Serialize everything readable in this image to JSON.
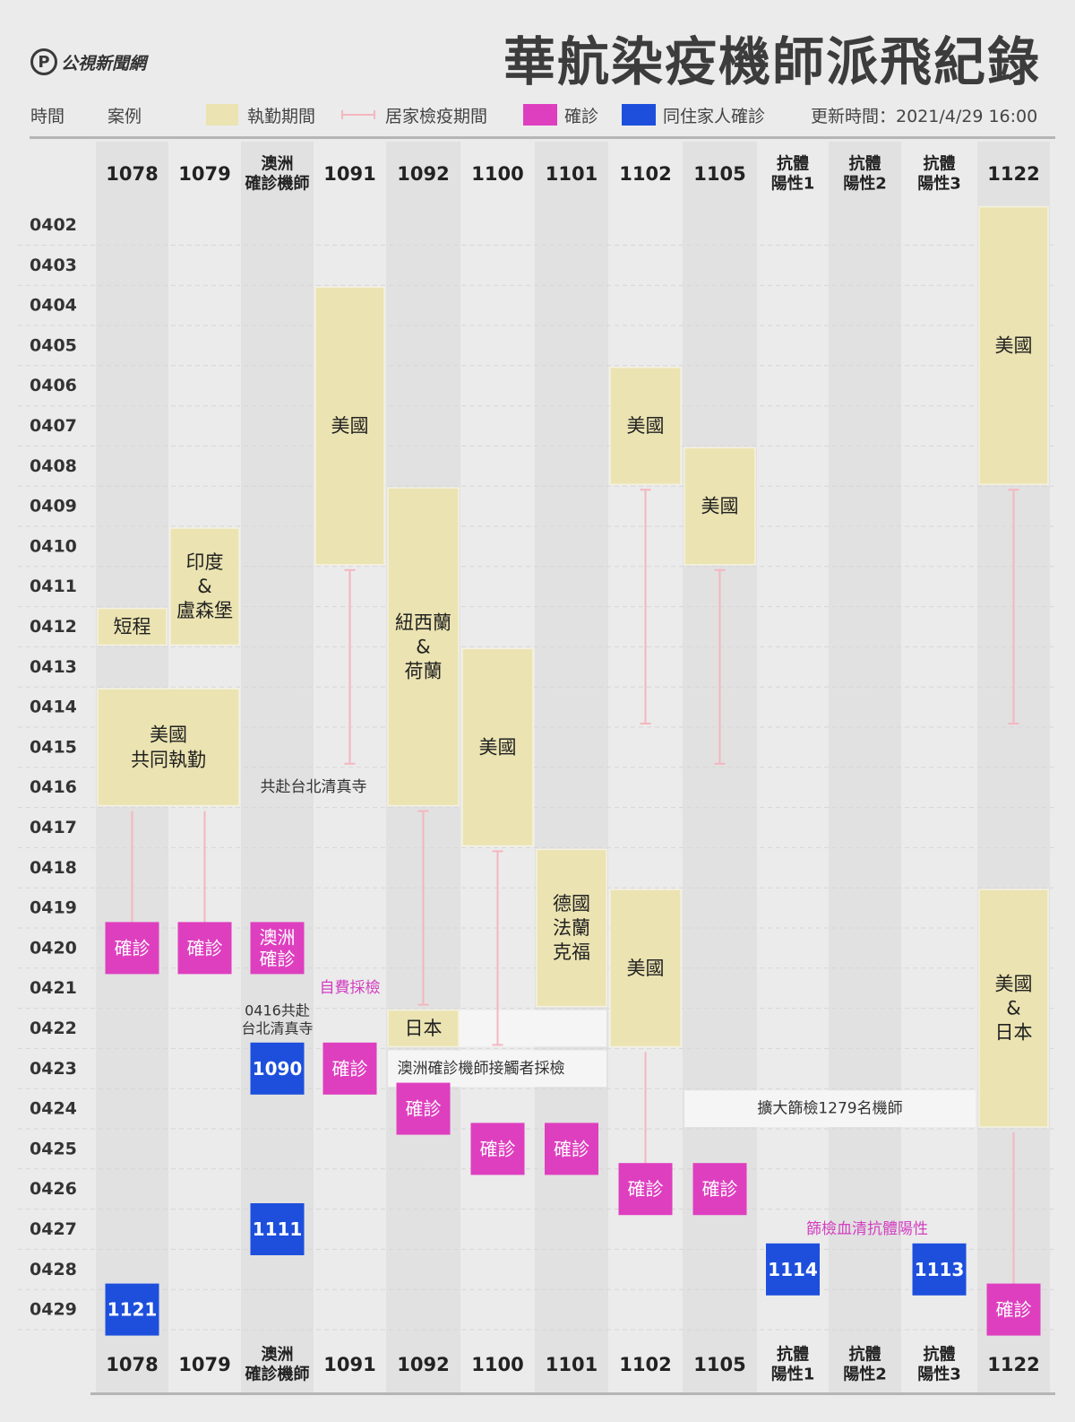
{
  "brand": {
    "logo_text": "公視新聞網",
    "logo_mark": "P"
  },
  "title": "華航染疫機師派飛紀錄",
  "legend": {
    "time_label": "時間",
    "case_label": "案例",
    "duty_label": "執勤期間",
    "quarantine_label": "居家檢疫期間",
    "confirmed_label": "確診",
    "family_label": "同住家人確診",
    "update_label": "更新時間：2021/4/29 16:00"
  },
  "colors": {
    "duty": "#ebe3b1",
    "quarantine": "#f4b6bf",
    "confirmed": "#de3fbf",
    "family": "#1d4fdc",
    "band": "#e1e1e1",
    "note_bg": "#f5f5f5",
    "pink_text": "#d33fc0"
  },
  "chart_data": {
    "type": "table",
    "columns": [
      {
        "id": "1078",
        "label": [
          "1078"
        ]
      },
      {
        "id": "1079",
        "label": [
          "1079"
        ]
      },
      {
        "id": "aus",
        "label": [
          "澳洲",
          "確診機師"
        ]
      },
      {
        "id": "1091",
        "label": [
          "1091"
        ]
      },
      {
        "id": "1092",
        "label": [
          "1092"
        ]
      },
      {
        "id": "1100",
        "label": [
          "1100"
        ]
      },
      {
        "id": "1101",
        "label": [
          "1101"
        ]
      },
      {
        "id": "1102",
        "label": [
          "1102"
        ]
      },
      {
        "id": "1105",
        "label": [
          "1105"
        ]
      },
      {
        "id": "ab1",
        "label": [
          "抗體",
          "陽性1"
        ]
      },
      {
        "id": "ab2",
        "label": [
          "抗體",
          "陽性2"
        ]
      },
      {
        "id": "ab3",
        "label": [
          "抗體",
          "陽性3"
        ]
      },
      {
        "id": "1122",
        "label": [
          "1122"
        ]
      }
    ],
    "dates": [
      "0402",
      "0403",
      "0404",
      "0405",
      "0406",
      "0407",
      "0408",
      "0409",
      "0410",
      "0411",
      "0412",
      "0413",
      "0414",
      "0415",
      "0416",
      "0417",
      "0418",
      "0419",
      "0420",
      "0421",
      "0422",
      "0423",
      "0424",
      "0425",
      "0426",
      "0427",
      "0428",
      "0429"
    ],
    "duty": [
      {
        "col": 0,
        "start": "0412",
        "end": "0412",
        "text": [
          "短程"
        ]
      },
      {
        "col": 1,
        "start": "0410",
        "end": "0412",
        "text": [
          "印度",
          "&",
          "盧森堡"
        ]
      },
      {
        "col": 0,
        "col_end": 1,
        "start": "0414",
        "end": "0416",
        "text": [
          "美國",
          "共同執勤"
        ]
      },
      {
        "col": 3,
        "start": "0404",
        "end": "0410",
        "text": [
          "美國"
        ]
      },
      {
        "col": 4,
        "start": "0409",
        "end": "0416",
        "text": [
          "紐西蘭",
          "&",
          "荷蘭"
        ]
      },
      {
        "col": 4,
        "start": "0422",
        "end": "0422",
        "text": [
          "日本"
        ]
      },
      {
        "col": 5,
        "start": "0413",
        "end": "0417",
        "text": [
          "美國"
        ]
      },
      {
        "col": 6,
        "start": "0418",
        "end": "0421",
        "text": [
          "德國",
          "法蘭",
          "克福"
        ]
      },
      {
        "col": 7,
        "start": "0406",
        "end": "0408",
        "text": [
          "美國"
        ]
      },
      {
        "col": 7,
        "start": "0419",
        "end": "0422",
        "text": [
          "美國"
        ]
      },
      {
        "col": 8,
        "start": "0408",
        "end": "0410",
        "text": [
          "美國"
        ]
      },
      {
        "col": 12,
        "start": "0402",
        "end": "0408",
        "text": [
          "美國"
        ]
      },
      {
        "col": 12,
        "start": "0419",
        "end": "0424",
        "text": [
          "美國",
          "&",
          "日本"
        ]
      }
    ],
    "quarantine": [
      {
        "col": 0,
        "start": "0417",
        "end": "0420",
        "capped": false
      },
      {
        "col": 1,
        "start": "0417",
        "end": "0420",
        "capped": false
      },
      {
        "col": 3,
        "start": "0411",
        "end": "0415",
        "capped": true
      },
      {
        "col": 4,
        "start": "0417",
        "end": "0421",
        "capped": true
      },
      {
        "col": 5,
        "start": "0418",
        "end": "0422",
        "capped": true
      },
      {
        "col": 7,
        "start": "0409",
        "end": "0414",
        "capped": true
      },
      {
        "col": 7,
        "start": "0423",
        "end": "0426",
        "capped": false
      },
      {
        "col": 8,
        "start": "0411",
        "end": "0415",
        "capped": true
      },
      {
        "col": 12,
        "start": "0409",
        "end": "0414",
        "capped": true
      },
      {
        "col": 12,
        "start": "0425",
        "end": "0429",
        "capped": false
      }
    ],
    "confirmed": [
      {
        "col": 0,
        "date": "0420",
        "text": [
          "確診"
        ]
      },
      {
        "col": 1,
        "date": "0420",
        "text": [
          "確診"
        ]
      },
      {
        "col": 2,
        "date": "0420",
        "text": [
          "澳洲",
          "確診"
        ]
      },
      {
        "col": 3,
        "date": "0423",
        "text": [
          "確診"
        ]
      },
      {
        "col": 4,
        "date": "0424",
        "text": [
          "確診"
        ]
      },
      {
        "col": 5,
        "date": "0425",
        "text": [
          "確診"
        ]
      },
      {
        "col": 6,
        "date": "0425",
        "text": [
          "確診"
        ]
      },
      {
        "col": 7,
        "date": "0426",
        "text": [
          "確診"
        ]
      },
      {
        "col": 8,
        "date": "0426",
        "text": [
          "確診"
        ]
      },
      {
        "col": 12,
        "date": "0429",
        "text": [
          "確診"
        ]
      }
    ],
    "family": [
      {
        "col": 2,
        "date": "0423",
        "text": "1090"
      },
      {
        "col": 2,
        "date": "0427",
        "text": "1111"
      },
      {
        "col": 0,
        "date": "0429",
        "text": "1121"
      },
      {
        "col": 9,
        "date": "0428",
        "text": "1114"
      },
      {
        "col": 11,
        "date": "0428",
        "text": "1113"
      }
    ],
    "notes": [
      {
        "col": 2,
        "col_end": 3,
        "date": "0416",
        "text": [
          "共赴台北清真寺"
        ],
        "style": "plain"
      },
      {
        "col": 3,
        "date": "0421",
        "text": [
          "自費採檢"
        ],
        "style": "pink"
      },
      {
        "col": 2,
        "date": "0422",
        "text": [
          "0416共赴",
          "台北清真寺"
        ],
        "style": "plain-small"
      },
      {
        "col": 4,
        "col_end": 6,
        "date": "0423",
        "text": [
          "澳洲確診機師接觸者採檢"
        ],
        "style": "box"
      },
      {
        "col": 8,
        "col_end": 11,
        "date": "0424",
        "text": [
          "擴大篩檢1279名機師"
        ],
        "style": "box"
      },
      {
        "col": 9,
        "col_end": 11,
        "date": "0427",
        "text": [
          "篩檢血清抗體陽性"
        ],
        "style": "pink"
      }
    ]
  }
}
